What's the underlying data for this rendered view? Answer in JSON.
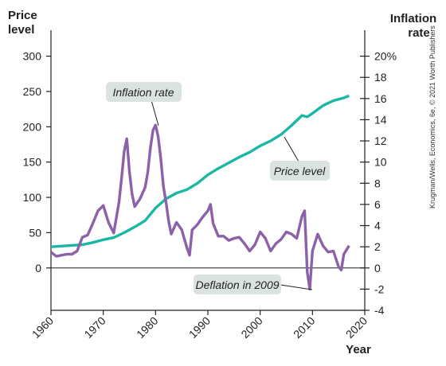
{
  "chart_data": {
    "type": "line",
    "credit": "Krugman/Wells, Economics, 6e, © 2021 Worth Publishers",
    "left_axis": {
      "title_line1": "Price",
      "title_line2": "level",
      "ticks": [
        0,
        50,
        100,
        150,
        200,
        250,
        300
      ],
      "tick_labels": [
        "0",
        "50",
        "100",
        "150",
        "200",
        "250",
        "300"
      ],
      "range": [
        -60,
        330
      ]
    },
    "right_axis": {
      "title_line1": "Inflation",
      "title_line2": "rate",
      "ticks": [
        -4,
        -2,
        0,
        2,
        4,
        6,
        8,
        10,
        12,
        14,
        16,
        18,
        20
      ],
      "tick_labels": [
        "-4",
        "-2",
        "0",
        "2",
        "4",
        "6",
        "8",
        "10",
        "12",
        "14",
        "16",
        "18",
        "20%"
      ],
      "range": [
        -4,
        22
      ]
    },
    "x_axis": {
      "title": "Year",
      "ticks": [
        1960,
        1970,
        1980,
        1990,
        2000,
        2010,
        2020
      ],
      "tick_labels": [
        "1960",
        "1970",
        "1980",
        "1990",
        "2000",
        "2010",
        "2020"
      ],
      "range": [
        1960,
        2020
      ]
    },
    "colors": {
      "price_level": "#1bb7a6",
      "inflation_rate": "#8b62aa",
      "callout_fill": "#dbe3e0",
      "axis": "#222222"
    },
    "annotations": {
      "inflation": "Inflation rate",
      "price": "Price level",
      "deflation": "Deflation in 2009"
    },
    "series": [
      {
        "name": "Price level",
        "axis": "left",
        "x": [
          1960,
          1962,
          1964,
          1966,
          1968,
          1970,
          1972,
          1974,
          1976,
          1978,
          1980,
          1982,
          1984,
          1986,
          1988,
          1990,
          1992,
          1994,
          1996,
          1998,
          2000,
          2002,
          2004,
          2006,
          2008,
          2009,
          2010,
          2012,
          2014,
          2016,
          2017
        ],
        "values": [
          30,
          31,
          32,
          33,
          36,
          40,
          43,
          50,
          58,
          67,
          85,
          98,
          106,
          111,
          120,
          132,
          141,
          149,
          157,
          164,
          173,
          180,
          189,
          202,
          216,
          214,
          219,
          230,
          237,
          241,
          244
        ]
      },
      {
        "name": "Inflation rate",
        "axis": "right",
        "x": [
          1960,
          1961,
          1962,
          1963,
          1964,
          1965,
          1966,
          1967,
          1968,
          1969,
          1970,
          1971,
          1972,
          1973,
          1973.5,
          1974,
          1974.5,
          1975,
          1975.5,
          1976,
          1977,
          1978,
          1978.5,
          1979,
          1979.5,
          1980,
          1980.5,
          1981,
          1981.5,
          1982,
          1982.5,
          1983,
          1984,
          1985,
          1986,
          1986.5,
          1987,
          1988,
          1989,
          1990,
          1990.5,
          1991,
          1992,
          1993,
          1994,
          1995,
          1996,
          1997,
          1998,
          1999,
          2000,
          2001,
          2002,
          2003,
          2004,
          2005,
          2006,
          2007,
          2008,
          2008.5,
          2009,
          2009.5,
          2010,
          2011,
          2012,
          2013,
          2014,
          2015,
          2015.5,
          2016,
          2017
        ],
        "values": [
          1.5,
          1.1,
          1.2,
          1.3,
          1.3,
          1.6,
          2.9,
          3.1,
          4.2,
          5.4,
          5.9,
          4.3,
          3.3,
          6.2,
          8.5,
          11.0,
          12.2,
          9.1,
          7.0,
          5.8,
          6.5,
          7.6,
          9.0,
          11.3,
          13.0,
          13.5,
          12.4,
          10.3,
          7.7,
          6.2,
          4.4,
          3.2,
          4.3,
          3.6,
          1.9,
          1.2,
          3.6,
          4.1,
          4.8,
          5.4,
          6.0,
          4.2,
          3.0,
          3.0,
          2.6,
          2.8,
          2.9,
          2.3,
          1.6,
          2.2,
          3.4,
          2.8,
          1.6,
          2.3,
          2.7,
          3.4,
          3.2,
          2.8,
          4.9,
          5.4,
          -0.4,
          -2.0,
          1.6,
          3.2,
          2.1,
          1.5,
          1.6,
          0.1,
          -0.2,
          1.3,
          2.1
        ]
      }
    ]
  }
}
